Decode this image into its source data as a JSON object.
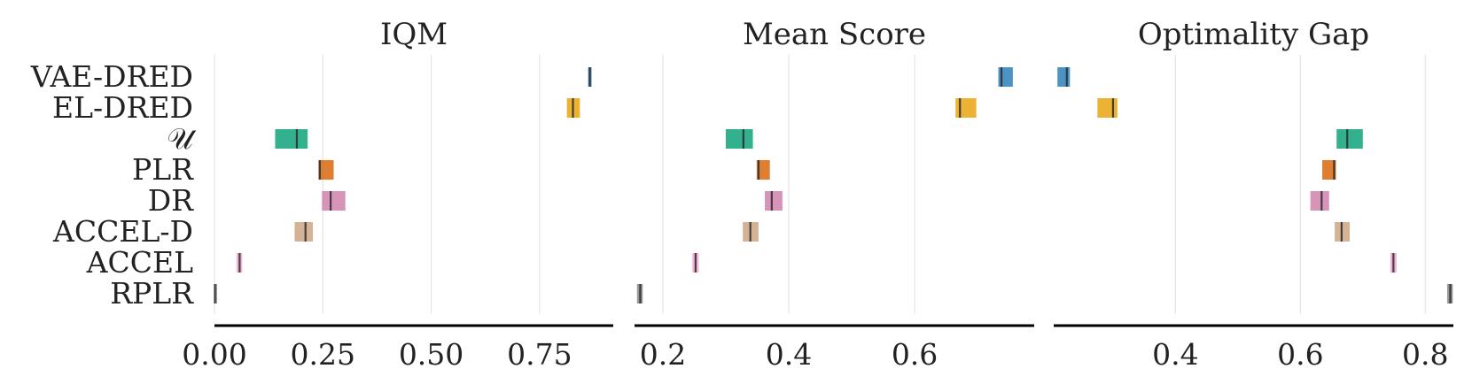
{
  "chart_data": {
    "type": "interval",
    "categories": [
      "VAE-DRED",
      "EL-DRED",
      "𝒰",
      "PLR",
      "DR",
      "ACCEL-D",
      "ACCEL",
      "RPLR"
    ],
    "colors": [
      "#1f77b4",
      "#e69f00",
      "#009e73",
      "#d55e00",
      "#cc79a7",
      "#c9a07a",
      "#f0a0d0",
      "#808080"
    ],
    "grid": true,
    "panels": [
      {
        "title": "IQM",
        "xlim": [
          0.0,
          0.92
        ],
        "ticks": [
          "0.00",
          "0.25",
          "0.50",
          "0.75"
        ],
        "tick_values": [
          0.0,
          0.25,
          0.5,
          0.75
        ],
        "intervals": [
          {
            "low": 0.862,
            "high": 0.87,
            "point": 0.866
          },
          {
            "low": 0.813,
            "high": 0.843,
            "point": 0.827
          },
          {
            "low": 0.14,
            "high": 0.215,
            "point": 0.19
          },
          {
            "low": 0.24,
            "high": 0.275,
            "point": 0.243
          },
          {
            "low": 0.248,
            "high": 0.302,
            "point": 0.268
          },
          {
            "low": 0.185,
            "high": 0.227,
            "point": 0.21
          },
          {
            "low": 0.051,
            "high": 0.064,
            "point": 0.058
          },
          {
            "low": 0.0,
            "high": 0.003,
            "point": 0.001
          }
        ]
      },
      {
        "title": "Mean Score",
        "xlim": [
          0.155,
          0.79
        ],
        "ticks": [
          "0.2",
          "0.4",
          "0.6"
        ],
        "tick_values": [
          0.2,
          0.4,
          0.6
        ],
        "intervals": [
          {
            "low": 0.733,
            "high": 0.756,
            "point": 0.738
          },
          {
            "low": 0.665,
            "high": 0.698,
            "point": 0.672
          },
          {
            "low": 0.3,
            "high": 0.343,
            "point": 0.328
          },
          {
            "low": 0.349,
            "high": 0.37,
            "point": 0.352
          },
          {
            "low": 0.362,
            "high": 0.39,
            "point": 0.373
          },
          {
            "low": 0.327,
            "high": 0.352,
            "point": 0.339
          },
          {
            "low": 0.247,
            "high": 0.257,
            "point": 0.252
          },
          {
            "low": 0.159,
            "high": 0.168,
            "point": 0.164
          }
        ]
      },
      {
        "title": "Optimality Gap",
        "xlim": [
          0.205,
          0.845
        ],
        "ticks": [
          "0.4",
          "0.6",
          "0.8"
        ],
        "tick_values": [
          0.4,
          0.6,
          0.8
        ],
        "intervals": [
          {
            "low": 0.211,
            "high": 0.231,
            "point": 0.226
          },
          {
            "low": 0.275,
            "high": 0.307,
            "point": 0.3
          },
          {
            "low": 0.658,
            "high": 0.7,
            "point": 0.675
          },
          {
            "low": 0.635,
            "high": 0.657,
            "point": 0.654
          },
          {
            "low": 0.616,
            "high": 0.646,
            "point": 0.634
          },
          {
            "low": 0.655,
            "high": 0.679,
            "point": 0.666
          },
          {
            "low": 0.744,
            "high": 0.754,
            "point": 0.749
          },
          {
            "low": 0.835,
            "high": 0.844,
            "point": 0.84
          }
        ]
      }
    ]
  }
}
